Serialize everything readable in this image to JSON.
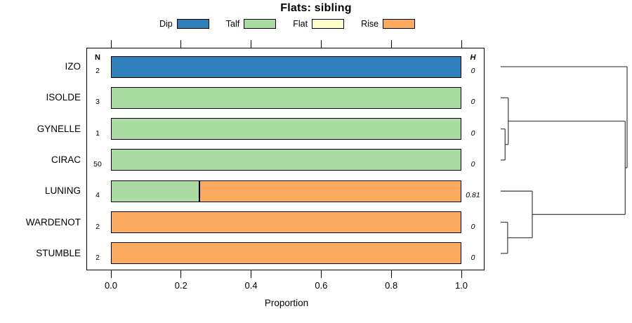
{
  "title": "Flats: sibling",
  "legend": {
    "items": [
      {
        "label": "Dip",
        "color": "#2E80BB"
      },
      {
        "label": "Talf",
        "color": "#A9DBA2"
      },
      {
        "label": "Flat",
        "color": "#FFFFCC"
      },
      {
        "label": "Rise",
        "color": "#FBAA5F"
      }
    ]
  },
  "table_headers": {
    "n": "N",
    "h": "H"
  },
  "axis": {
    "label": "Proportion"
  },
  "colors": {
    "bar_border": "#000000",
    "dendro_line": "#4a4a4a",
    "text": "#000000"
  },
  "chart_data": {
    "type": "bar",
    "orientation": "horizontal",
    "stacked": true,
    "title": "Flats: sibling",
    "xlabel": "Proportion",
    "ylabel": "",
    "xlim": [
      0,
      1
    ],
    "xticks": [
      "0.0",
      "0.2",
      "0.4",
      "0.6",
      "0.8",
      "1.0"
    ],
    "grid": false,
    "legend_position": "top",
    "categories": [
      "IZO",
      "ISOLDE",
      "GYNELLE",
      "CIRAC",
      "LUNING",
      "WARDENOT",
      "STUMBLE"
    ],
    "series": [
      {
        "name": "Dip",
        "color": "#2E80BB",
        "values": [
          1,
          0,
          0,
          0,
          0,
          0,
          0
        ]
      },
      {
        "name": "Talf",
        "color": "#A9DBA2",
        "values": [
          0,
          1,
          1,
          1,
          0.25,
          0,
          0
        ]
      },
      {
        "name": "Flat",
        "color": "#FFFFCC",
        "values": [
          0,
          0,
          0,
          0,
          0,
          0,
          0
        ]
      },
      {
        "name": "Rise",
        "color": "#FBAA5F",
        "values": [
          0,
          0,
          0,
          0,
          0.75,
          1,
          1
        ]
      }
    ],
    "n_values": [
      "2",
      "3",
      "1",
      "50",
      "4",
      "2",
      "2"
    ],
    "h_values": [
      "0",
      "0",
      "0",
      "0",
      "0.81",
      "0",
      "0"
    ],
    "dendrogram": {
      "leaves": [
        "IZO",
        "ISOLDE",
        "GYNELLE",
        "CIRAC",
        "LUNING",
        "WARDENOT",
        "STUMBLE"
      ],
      "merges": [
        {
          "id": "m1",
          "children": [
            "GYNELLE",
            "CIRAC"
          ],
          "height": 0.035
        },
        {
          "id": "m2",
          "children": [
            "ISOLDE",
            "m1"
          ],
          "height": 0.06
        },
        {
          "id": "m3",
          "children": [
            "WARDENOT",
            "STUMBLE"
          ],
          "height": 0.055
        },
        {
          "id": "m4",
          "children": [
            "LUNING",
            "m3"
          ],
          "height": 0.25
        },
        {
          "id": "m5",
          "children": [
            "m2",
            "m4"
          ],
          "height": 0.985
        },
        {
          "id": "m6",
          "children": [
            "IZO",
            "m5"
          ],
          "height": 1.0
        }
      ]
    }
  }
}
